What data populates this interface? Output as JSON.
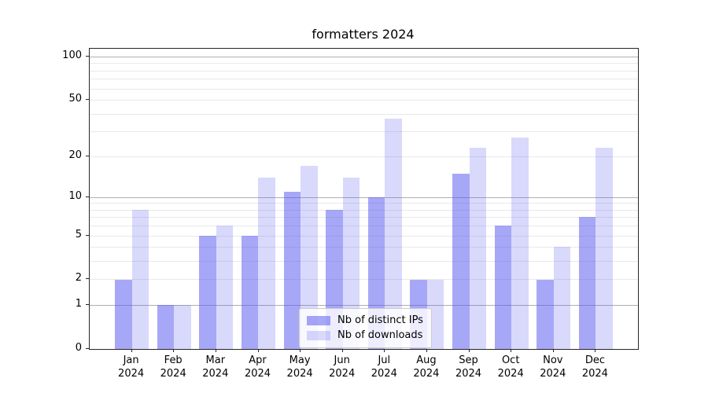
{
  "figure": {
    "title": "formatters 2024"
  },
  "chart_data": {
    "type": "bar",
    "title": "formatters 2024",
    "categories": [
      "Jan 2024",
      "Feb 2024",
      "Mar 2024",
      "Apr 2024",
      "May 2024",
      "Jun 2024",
      "Jul 2024",
      "Aug 2024",
      "Sep 2024",
      "Oct 2024",
      "Nov 2024",
      "Dec 2024"
    ],
    "series": [
      {
        "name": "Nb of distinct IPs",
        "color": "rgba(80,80,240,0.5)",
        "values": [
          2,
          1,
          5,
          5,
          11,
          8,
          10,
          2,
          15,
          6,
          2,
          7
        ]
      },
      {
        "name": "Nb of downloads",
        "color": "rgba(80,80,240,0.22)",
        "values": [
          8,
          1,
          6,
          14,
          17,
          14,
          37,
          2,
          23,
          27,
          4,
          23
        ]
      }
    ],
    "yscale": "log1p",
    "ylim": [
      0,
      113.4
    ],
    "ytick_labels": [
      0,
      1,
      2,
      5,
      10,
      20,
      50,
      100
    ],
    "major_gridlines": [
      1,
      10,
      100
    ],
    "minor_gridlines": [
      2,
      3,
      4,
      5,
      6,
      7,
      8,
      9,
      20,
      30,
      40,
      50,
      60,
      70,
      80,
      90
    ],
    "grid": true,
    "legend_location": "lower-center",
    "xlabel": "",
    "ylabel": ""
  },
  "colors": {
    "grid_major": "#b0b0b0",
    "grid_minor": "#e9e9e9",
    "spine": "#262626",
    "legend_border": "#cccccc",
    "legend_bg": "rgba(255,255,255,0.8)"
  }
}
